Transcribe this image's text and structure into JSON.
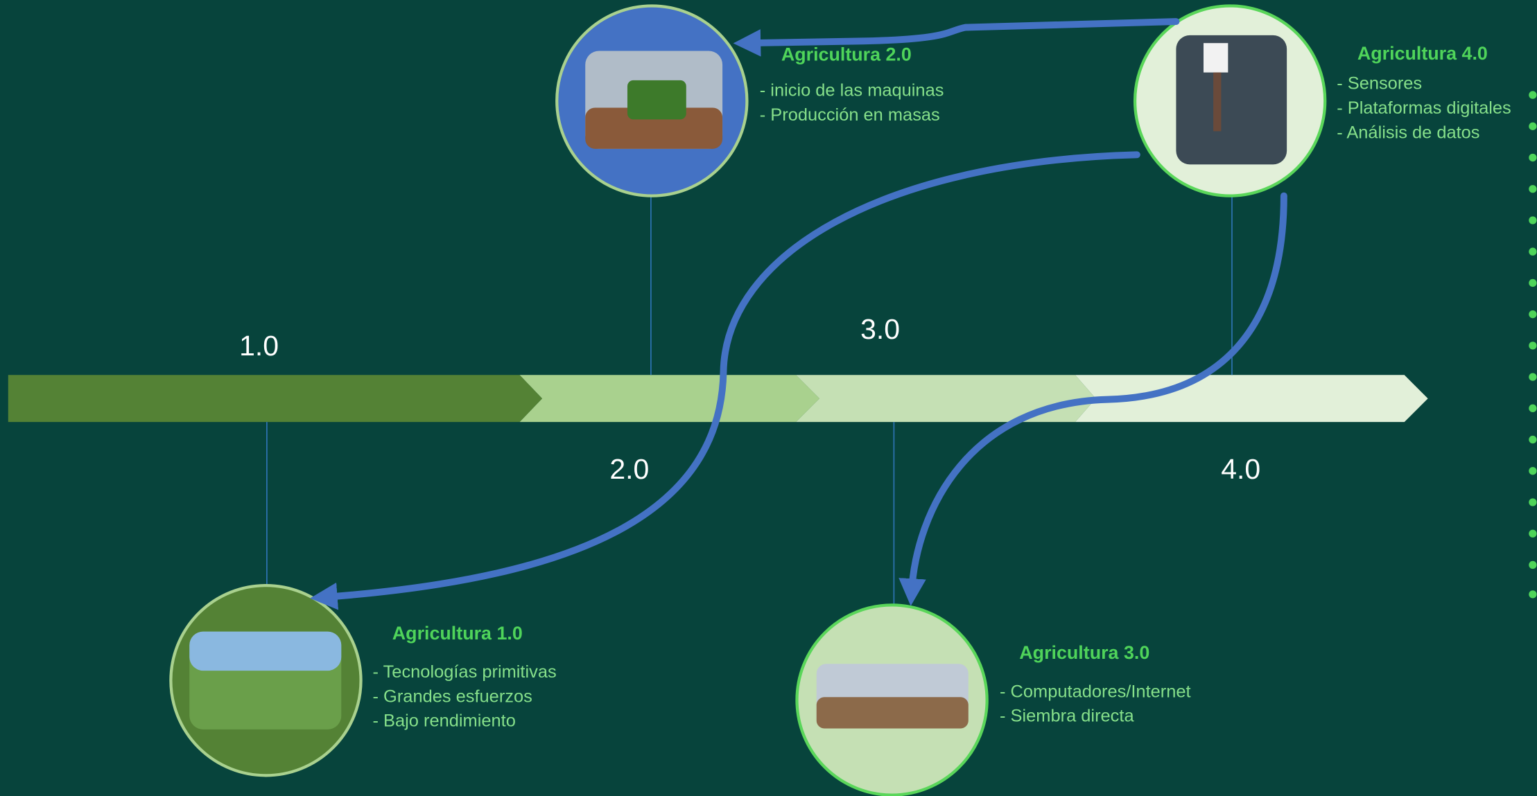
{
  "timeline": {
    "labels": [
      "1.0",
      "2.0",
      "3.0",
      "4.0"
    ]
  },
  "nodes": [
    {
      "title": "Agricultura 1.0",
      "items": [
        "- Tecnologías primitivas",
        "- Grandes esfuerzos",
        "- Bajo rendimiento"
      ]
    },
    {
      "title": "Agricultura 2.0",
      "items": [
        "- inicio de las maquinas",
        "- Producción en masas"
      ]
    },
    {
      "title": "Agricultura 3.0",
      "items": [
        "- Computadores/Internet",
        "- Siembra directa"
      ]
    },
    {
      "title": "Agricultura 4.0",
      "items": [
        "- Sensores",
        "- Plataformas digitales",
        "- Análisis de datos"
      ]
    }
  ]
}
